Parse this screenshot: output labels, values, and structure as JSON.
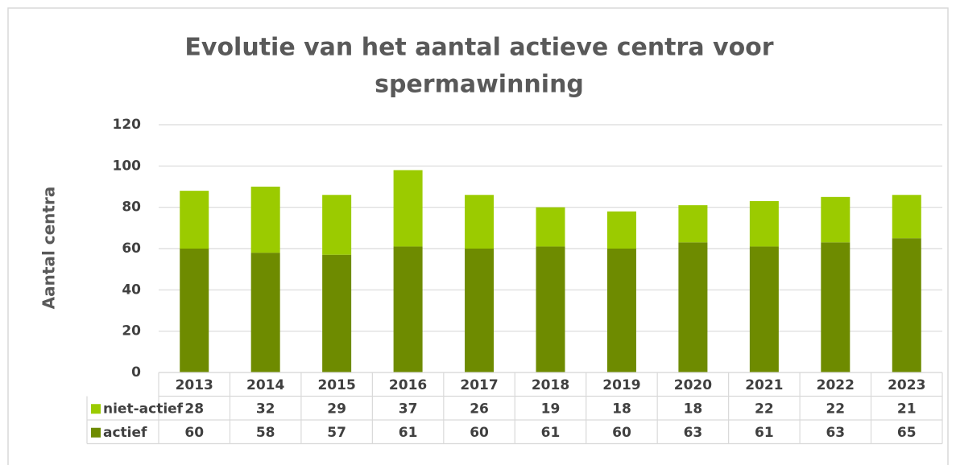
{
  "chart_data": {
    "type": "bar",
    "stacked": true,
    "title": [
      "Evolutie van het aantal actieve centra voor",
      "spermawinning"
    ],
    "ylabel": "Aantal centra",
    "categories": [
      "2013",
      "2014",
      "2015",
      "2016",
      "2017",
      "2018",
      "2019",
      "2020",
      "2021",
      "2022",
      "2023"
    ],
    "series": [
      {
        "name": "niet-actief",
        "color": "#9bcb00",
        "values": [
          28,
          32,
          29,
          37,
          26,
          19,
          18,
          18,
          22,
          22,
          21
        ]
      },
      {
        "name": "actief",
        "color": "#6e8b00",
        "values": [
          60,
          58,
          57,
          61,
          60,
          61,
          60,
          63,
          61,
          63,
          65
        ]
      }
    ],
    "ylim": [
      0,
      120
    ],
    "yticks": [
      0,
      20,
      40,
      60,
      80,
      100,
      120
    ],
    "grid": true
  }
}
